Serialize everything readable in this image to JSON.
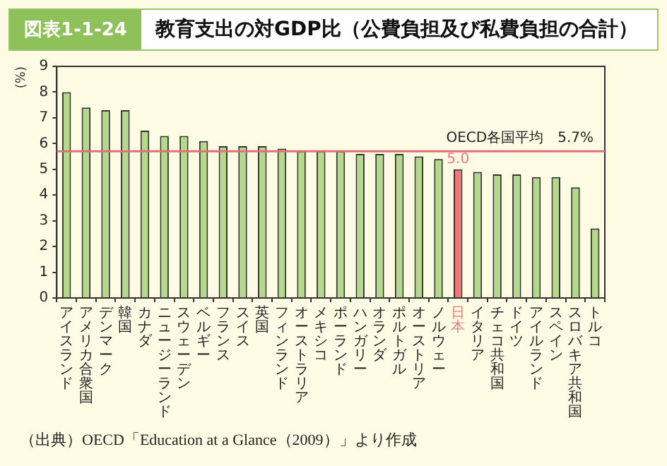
{
  "chart_data": {
    "type": "bar",
    "title": "教育支出の対GDP比（公費負担及び私費負担の合計）",
    "ylabel": "(%)",
    "annotations": [
      "図表1-1-24",
      "（出典）OECD「Education at a Glance（2009）」より作成"
    ],
    "categories": [
      "アイスランド",
      "アメリカ合衆国",
      "デンマーク",
      "韓国",
      "カナダ",
      "ニュージーランド",
      "スウェーデン",
      "ベルギー",
      "フランス",
      "スイス",
      "英国",
      "フィンランド",
      "オーストラリア",
      "メキシコ",
      "ポーランド",
      "ハンガリー",
      "オランダ",
      "ポルトガル",
      "オーストリア",
      "ノルウェー",
      "日本",
      "イタリア",
      "チェコ共和国",
      "ドイツ",
      "アイルランド",
      "スペイン",
      "スロバキア共和国",
      "トルコ"
    ],
    "values": [
      8.0,
      7.4,
      7.3,
      7.3,
      6.5,
      6.3,
      6.3,
      6.1,
      5.9,
      5.9,
      5.9,
      5.8,
      5.7,
      5.7,
      5.7,
      5.6,
      5.6,
      5.6,
      5.5,
      5.4,
      5.0,
      4.9,
      4.8,
      4.8,
      4.7,
      4.7,
      4.3,
      2.7
    ],
    "colors": [
      "#b5d98a",
      "#b5d98a",
      "#b5d98a",
      "#b5d98a",
      "#b5d98a",
      "#b5d98a",
      "#b5d98a",
      "#b5d98a",
      "#b5d98a",
      "#b5d98a",
      "#b5d98a",
      "#b5d98a",
      "#b5d98a",
      "#b5d98a",
      "#b5d98a",
      "#b5d98a",
      "#b5d98a",
      "#b5d98a",
      "#b5d98a",
      "#b5d98a",
      "#f07878",
      "#b5d98a",
      "#b5d98a",
      "#b5d98a",
      "#b5d98a",
      "#b5d98a",
      "#b5d98a",
      "#b5d98a"
    ],
    "value_labels": [
      null,
      null,
      null,
      null,
      null,
      null,
      null,
      null,
      null,
      null,
      null,
      null,
      null,
      null,
      null,
      null,
      null,
      null,
      null,
      null,
      "5.0",
      null,
      null,
      null,
      null,
      null,
      null,
      null
    ],
    "ylim": [
      0,
      9
    ],
    "yticks": [
      0,
      1,
      2,
      3,
      4,
      5,
      6,
      7,
      8,
      9
    ],
    "ref_lines": [
      {
        "axis": "y",
        "value": 5.7,
        "label": "OECD各国平均　5.7%",
        "color": "#e0707a"
      }
    ],
    "grid": false,
    "legend": false
  }
}
